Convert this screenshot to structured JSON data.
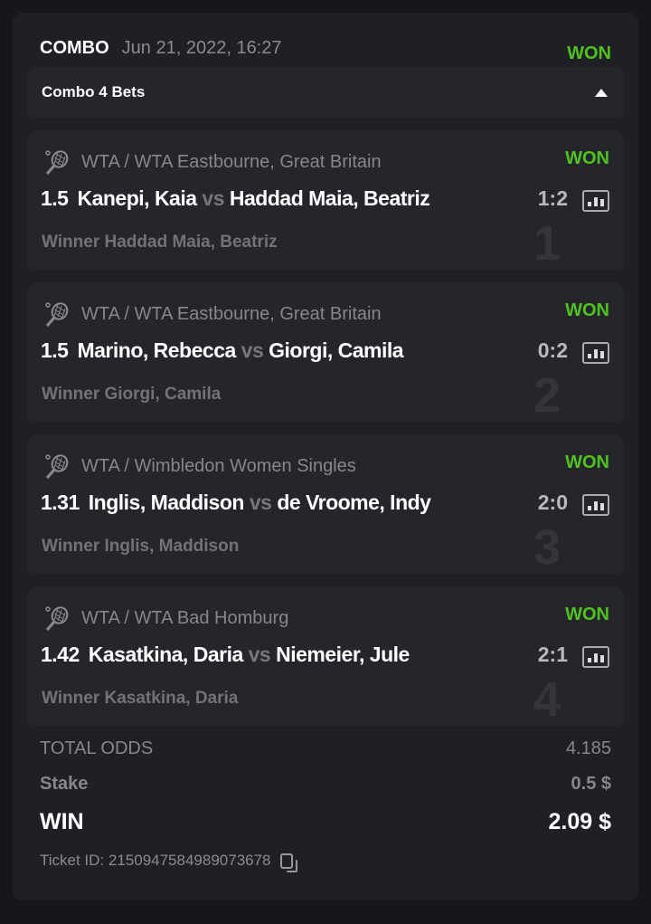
{
  "header": {
    "type": "COMBO",
    "date": "Jun 21, 2022, 16:27",
    "status": "WON"
  },
  "combo": {
    "label": "Combo 4 Bets",
    "expanded": true
  },
  "bets": [
    {
      "index": "1",
      "league": "WTA / WTA Eastbourne, Great Britain",
      "status": "WON",
      "odds": "1.5",
      "home": "Kanepi, Kaia",
      "vs": "vs",
      "away": "Haddad Maia, Beatriz",
      "score": "1:2",
      "selection": "Winner Haddad Maia, Beatriz"
    },
    {
      "index": "2",
      "league": "WTA / WTA Eastbourne, Great Britain",
      "status": "WON",
      "odds": "1.5",
      "home": "Marino, Rebecca",
      "vs": "vs",
      "away": "Giorgi, Camila",
      "score": "0:2",
      "selection": "Winner Giorgi, Camila"
    },
    {
      "index": "3",
      "league": "WTA / Wimbledon Women Singles",
      "status": "WON",
      "odds": "1.31",
      "home": "Inglis, Maddison",
      "vs": "vs",
      "away": "de Vroome, Indy",
      "score": "2:0",
      "selection": "Winner Inglis, Maddison"
    },
    {
      "index": "4",
      "league": "WTA / WTA Bad Homburg",
      "status": "WON",
      "odds": "1.42",
      "home": "Kasatkina, Daria",
      "vs": "vs",
      "away": "Niemeier, Jule",
      "score": "2:1",
      "selection": "Winner Kasatkina, Daria"
    }
  ],
  "summary": {
    "total_odds_label": "TOTAL ODDS",
    "total_odds": "4.185",
    "stake_label": "Stake",
    "stake": "0.5 $",
    "win_label": "WIN",
    "win": "2.09 $",
    "ticket_label": "Ticket ID: 2150947584989073678"
  },
  "colors": {
    "won": "#4fc21f",
    "background": "#16171b",
    "card": "#1f2025",
    "item": "#25262b"
  },
  "icons": [
    "tennis-racket-icon",
    "stats-icon",
    "copy-icon",
    "caret-up-icon"
  ]
}
